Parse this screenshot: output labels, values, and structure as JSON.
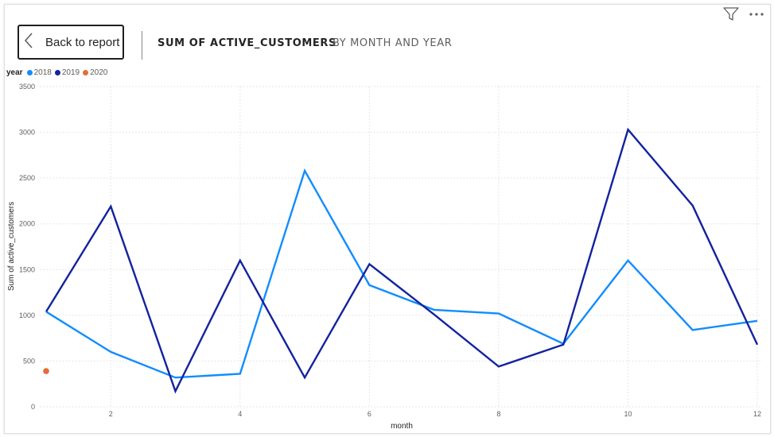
{
  "header": {
    "back_label": "Back to report",
    "title": "SUM OF ACTIVE_CUSTOMERS",
    "subtitle": "BY MONTH AND YEAR"
  },
  "icons": {
    "filter": "filter-icon",
    "more": "more-options-icon",
    "back": "chevron-left-icon"
  },
  "legend": {
    "title": "year",
    "items": [
      {
        "label": "2018",
        "color": "#118DFF"
      },
      {
        "label": "2019",
        "color": "#12239E"
      },
      {
        "label": "2020",
        "color": "#E66C37"
      }
    ]
  },
  "chart_data": {
    "type": "line",
    "xlabel": "month",
    "ylabel": "Sum of active_customers",
    "xlim": [
      1,
      12
    ],
    "ylim": [
      0,
      3500
    ],
    "x_ticks": [
      2,
      4,
      6,
      8,
      10,
      12
    ],
    "y_ticks": [
      0,
      500,
      1000,
      1500,
      2000,
      2500,
      3000,
      3500
    ],
    "grid": true,
    "legend_position": "top-left",
    "series": [
      {
        "name": "2018",
        "color": "#118DFF",
        "x": [
          1,
          2,
          3,
          4,
          5,
          6,
          7,
          8,
          9,
          10,
          11,
          12
        ],
        "y": [
          1040,
          600,
          320,
          360,
          2580,
          1330,
          1060,
          1020,
          690,
          1600,
          840,
          940
        ]
      },
      {
        "name": "2019",
        "color": "#12239E",
        "x": [
          1,
          2,
          3,
          4,
          5,
          6,
          7,
          8,
          9,
          10,
          11,
          12
        ],
        "y": [
          1040,
          2190,
          170,
          1600,
          320,
          1560,
          1010,
          440,
          680,
          3030,
          2200,
          680
        ]
      },
      {
        "name": "2020",
        "color": "#E66C37",
        "x": [
          1
        ],
        "y": [
          390
        ]
      }
    ]
  }
}
